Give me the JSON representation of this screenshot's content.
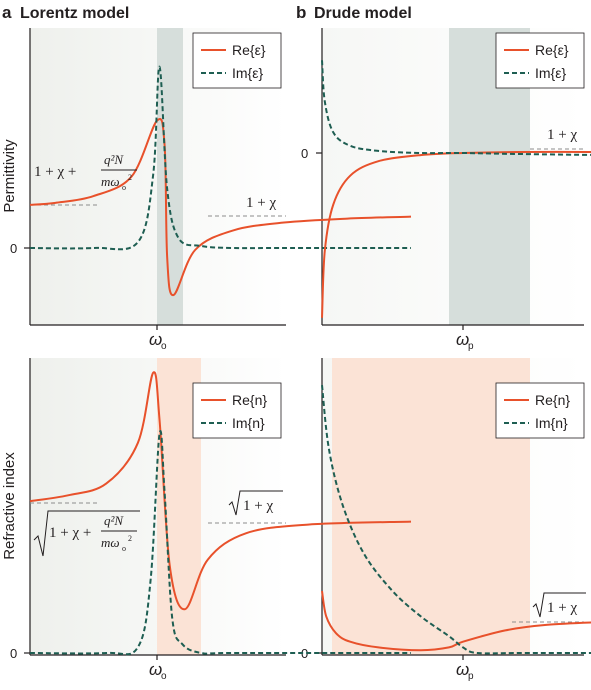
{
  "colors": {
    "real": "#e8512b",
    "imag": "#1e5e52",
    "dash_asym": "#8c8c8c",
    "band_gray": "#d6dedb",
    "band_peach": "#fbe3d6",
    "bg_gradient": "#f1f2ef",
    "axis": "#231f20"
  },
  "panels": {
    "a": {
      "letter": "a",
      "title": "Lorentz model"
    },
    "b": {
      "letter": "b",
      "title": "Drude model"
    }
  },
  "axes": {
    "permittivity_label": "Permittivity",
    "refractive_label": "Refractive index",
    "zero": "0",
    "omega_o": "ω",
    "omega_o_sub": "o",
    "omega_p": "ω",
    "omega_p_sub": "p"
  },
  "legend": {
    "re_eps": "Re{ε}",
    "im_eps": "Im{ε}",
    "re_n": "Re{n}",
    "im_n": "Im{n}"
  },
  "annotations": {
    "one_plus_chi": "1 + χ",
    "one_plus_chi_plus": "1 + χ +",
    "sqrt_one_plus_chi": "1 + χ",
    "frac_num": "q²N",
    "frac_den": "mω",
    "frac_den_sub": "o",
    "frac_den_sup": "2"
  },
  "chart_data": [
    {
      "type": "line",
      "panel": "a-top",
      "ylabel": "Permittivity",
      "x_tick": "ωo",
      "series": [
        {
          "name": "Re{ε}",
          "x": [
            0.0,
            0.2,
            0.5,
            0.8,
            1.0,
            1.06,
            1.08,
            1.13,
            1.3,
            1.6,
            2.0,
            2.5,
            3.0
          ],
          "y": [
            0.44,
            0.46,
            0.53,
            0.73,
            1.3,
            1.05,
            -0.1,
            -0.48,
            -0.02,
            0.18,
            0.26,
            0.3,
            0.32
          ]
        },
        {
          "name": "Im{ε}",
          "x": [
            0.0,
            0.5,
            0.85,
            0.97,
            1.02,
            1.08,
            1.17,
            1.35,
            1.6,
            2.0,
            3.0
          ],
          "y": [
            0.0,
            0.0,
            0.06,
            0.75,
            1.85,
            0.6,
            0.1,
            0.02,
            0.0,
            0.0,
            0.0
          ]
        }
      ],
      "asymptotes": [
        "1 + χ + q²N / mωo²",
        "1 + χ"
      ],
      "shaded_band": [
        1.0,
        1.2
      ]
    },
    {
      "type": "line",
      "panel": "b-top",
      "x_tick": "ωp",
      "series": [
        {
          "name": "Re{ε}",
          "x": [
            0.0,
            0.02,
            0.08,
            0.2,
            0.4,
            0.7,
            1.0,
            1.4,
            2.0
          ],
          "y": [
            -1.6,
            -0.95,
            -0.5,
            -0.22,
            -0.08,
            -0.02,
            0.0,
            0.01,
            0.01
          ]
        },
        {
          "name": "Im{ε}",
          "x": [
            0.0,
            0.02,
            0.08,
            0.2,
            0.4,
            0.7,
            1.0,
            1.4,
            2.0
          ],
          "y": [
            0.9,
            0.5,
            0.2,
            0.07,
            0.02,
            0.0,
            0.0,
            -0.01,
            -0.02
          ]
        }
      ],
      "asymptotes": [
        "1 + χ"
      ],
      "shaded_band": [
        0.9,
        1.45
      ]
    },
    {
      "type": "line",
      "panel": "a-bottom",
      "ylabel": "Refractive index",
      "x_tick": "ωo",
      "series": [
        {
          "name": "Re{n}",
          "x": [
            0.0,
            0.3,
            0.6,
            0.85,
            0.97,
            1.02,
            1.1,
            1.22,
            1.4,
            1.7,
            2.2,
            3.0
          ],
          "y": [
            0.52,
            0.54,
            0.58,
            0.72,
            0.96,
            0.8,
            0.3,
            0.15,
            0.32,
            0.41,
            0.44,
            0.45
          ]
        },
        {
          "name": "Im{n}",
          "x": [
            0.0,
            0.6,
            0.85,
            0.95,
            1.02,
            1.06,
            1.12,
            1.2,
            1.35,
            1.6,
            3.0
          ],
          "y": [
            0.0,
            0.0,
            0.02,
            0.25,
            0.75,
            0.55,
            0.12,
            0.03,
            0.0,
            0.0,
            0.0
          ]
        }
      ],
      "asymptotes": [
        "√(1 + χ + q²N / mωo²)",
        "√(1 + χ)"
      ],
      "shaded_band": [
        1.0,
        1.35
      ]
    },
    {
      "type": "line",
      "panel": "b-bottom",
      "x_tick": "ωp",
      "series": [
        {
          "name": "Re{n}",
          "x": [
            0.0,
            0.03,
            0.1,
            0.2,
            0.4,
            0.7,
            0.9,
            1.0,
            1.3,
            1.6,
            2.0
          ],
          "y": [
            0.22,
            0.13,
            0.07,
            0.04,
            0.02,
            0.01,
            0.02,
            0.04,
            0.08,
            0.1,
            0.11
          ]
        },
        {
          "name": "Im{n}",
          "x": [
            0.0,
            0.05,
            0.15,
            0.3,
            0.5,
            0.7,
            0.9,
            1.0,
            1.1,
            1.4,
            2.0
          ],
          "y": [
            0.95,
            0.72,
            0.52,
            0.35,
            0.22,
            0.13,
            0.06,
            0.02,
            0.0,
            0.0,
            0.0
          ]
        }
      ],
      "asymptotes": [
        "√(1 + χ)"
      ],
      "shaded_band": [
        0.05,
        1.45
      ]
    }
  ]
}
